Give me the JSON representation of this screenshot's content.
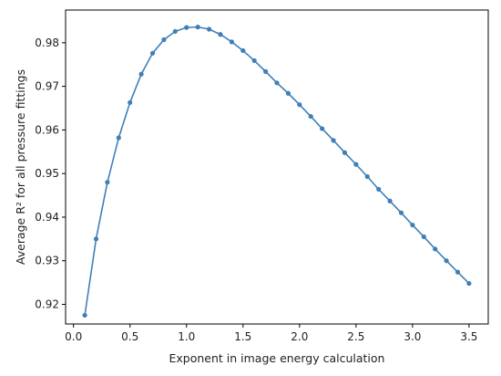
{
  "chart_data": {
    "type": "line",
    "xlabel": "Exponent in image energy calculation",
    "ylabel": "Average R² for all pressure fittings",
    "xlim": [
      -0.07,
      3.67
    ],
    "ylim": [
      0.9155,
      0.9875
    ],
    "xticks": [
      0.0,
      0.5,
      1.0,
      1.5,
      2.0,
      2.5,
      3.0,
      3.5
    ],
    "xtick_labels": [
      "0.0",
      "0.5",
      "1.0",
      "1.5",
      "2.0",
      "2.5",
      "3.0",
      "3.5"
    ],
    "yticks": [
      0.92,
      0.93,
      0.94,
      0.95,
      0.96,
      0.97,
      0.98
    ],
    "ytick_labels": [
      "0.92",
      "0.93",
      "0.94",
      "0.95",
      "0.96",
      "0.97",
      "0.98"
    ],
    "grid": false,
    "color": "#3f7fb7",
    "series": [
      {
        "x": [
          0.1,
          0.2,
          0.3,
          0.4,
          0.5,
          0.6,
          0.7,
          0.8,
          0.9,
          1.0,
          1.1,
          1.2,
          1.3,
          1.4,
          1.5,
          1.6,
          1.7,
          1.8,
          1.9,
          2.0,
          2.1,
          2.2,
          2.3,
          2.4,
          2.5,
          2.6,
          2.7,
          2.8,
          2.9,
          3.0,
          3.1,
          3.2,
          3.3,
          3.4,
          3.5
        ],
        "y": [
          0.9175,
          0.935,
          0.948,
          0.9582,
          0.9663,
          0.9728,
          0.9776,
          0.9807,
          0.9826,
          0.9835,
          0.9836,
          0.9831,
          0.9819,
          0.9802,
          0.9782,
          0.9759,
          0.9734,
          0.9708,
          0.9684,
          0.9658,
          0.9631,
          0.9603,
          0.9576,
          0.9548,
          0.9521,
          0.9493,
          0.9464,
          0.9437,
          0.941,
          0.9382,
          0.9355,
          0.9327,
          0.93,
          0.9274,
          0.9248
        ]
      }
    ]
  }
}
